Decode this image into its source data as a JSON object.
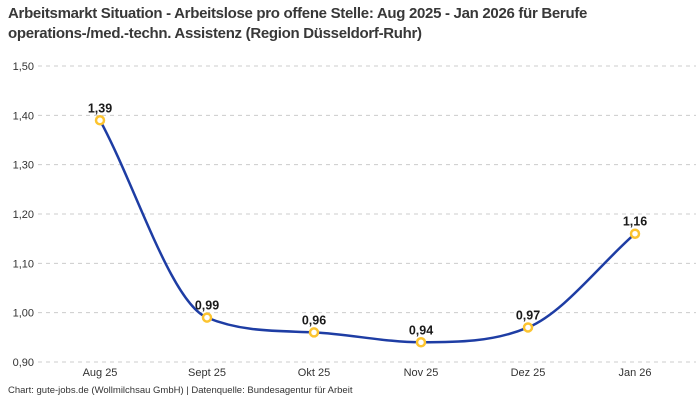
{
  "header": {
    "title": "Arbeitsmarkt Situation - Arbeitslose pro offene Stelle: Aug 2025 - Jan 2026 für Berufe operations-/med.-techn. Assistenz (Region Düsseldorf-Ruhr)"
  },
  "footer": {
    "credit": "Chart: gute-jobs.de (Wollmilchsau GmbH) | Datenquelle: Bundesagentur für Arbeit"
  },
  "chart_data": {
    "type": "line",
    "title": "Arbeitsmarkt Situation - Arbeitslose pro offene Stelle: Aug 2025 - Jan 2026 für Berufe operations-/med.-techn. Assistenz (Region Düsseldorf-Ruhr)",
    "xlabel": "",
    "ylabel": "",
    "categories": [
      "Aug 25",
      "Sept 25",
      "Okt 25",
      "Nov 25",
      "Dez 25",
      "Jan 26"
    ],
    "series": [
      {
        "name": "Arbeitslose pro offene Stelle",
        "values": [
          1.39,
          0.99,
          0.96,
          0.94,
          0.97,
          1.16
        ],
        "value_labels": [
          "1,39",
          "0,99",
          "0,96",
          "0,94",
          "0,97",
          "1,16"
        ]
      }
    ],
    "ylim": [
      0.9,
      1.5
    ],
    "yticks": [
      {
        "value": 1.5,
        "label": "1,50"
      },
      {
        "value": 1.4,
        "label": "1,40"
      },
      {
        "value": 1.3,
        "label": "1,30"
      },
      {
        "value": 1.2,
        "label": "1,20"
      },
      {
        "value": 1.1,
        "label": "1,10"
      },
      {
        "value": 1.0,
        "label": "1,00"
      },
      {
        "value": 0.9,
        "label": "0,90"
      }
    ],
    "grid": "horizontal-dashed",
    "legend": "none",
    "curve": "smooth-monotone",
    "colors": {
      "line": "#1e3da4",
      "marker_ring": "#fcc430",
      "marker_fill": "#ffffff",
      "gridline": "#cccccc",
      "axis_text": "#333333",
      "value_label": "#1a1a1a",
      "title": "#383838",
      "background": "#ffffff"
    }
  }
}
